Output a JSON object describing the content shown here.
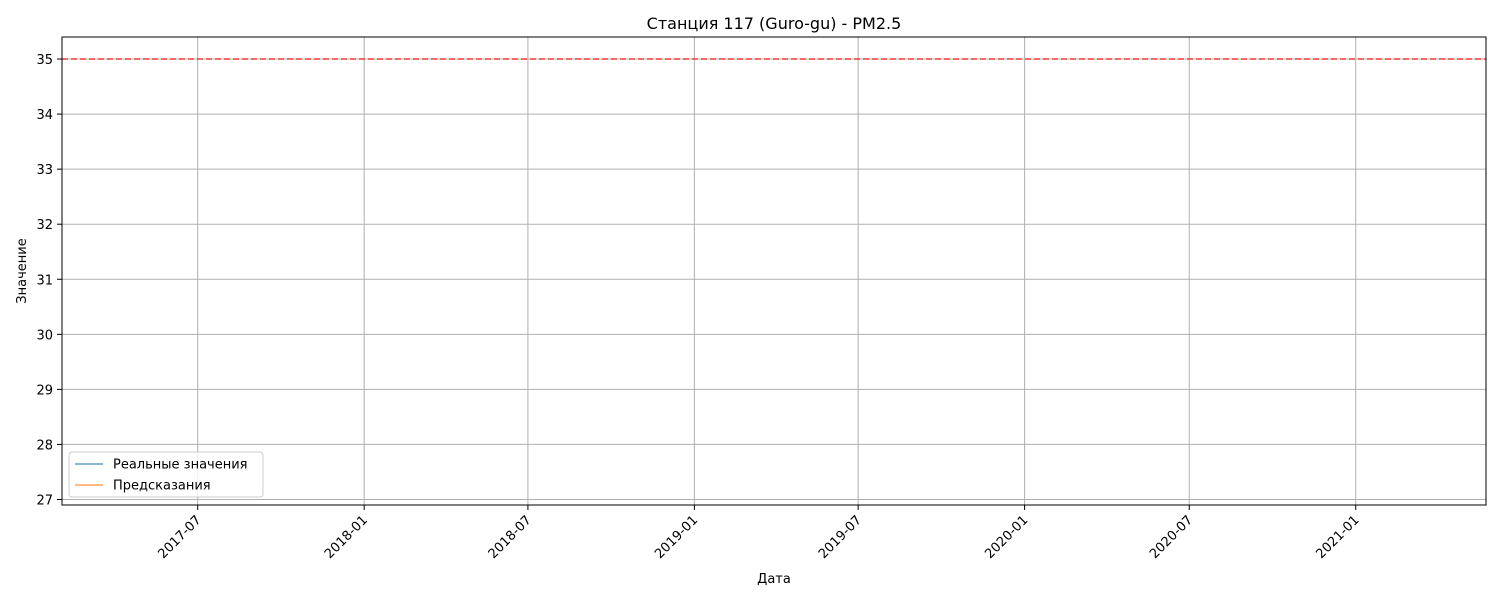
{
  "chart_data": {
    "type": "line",
    "title": "Станция 117 (Guro-gu) - PM2.5",
    "xlabel": "Дата",
    "ylabel": "Значение",
    "x_axis": {
      "range": [
        "2017-02-01",
        "2021-05-25"
      ],
      "tick_values": [
        "2017-07-01",
        "2018-01-01",
        "2018-07-01",
        "2019-01-01",
        "2019-07-01",
        "2020-01-01",
        "2020-07-01",
        "2021-01-01"
      ],
      "tick_labels": [
        "2017-07",
        "2018-01",
        "2018-07",
        "2019-01",
        "2019-07",
        "2020-01",
        "2020-07",
        "2021-01"
      ]
    },
    "y_axis": {
      "range": [
        26.9,
        35.4
      ],
      "tick_values": [
        27,
        28,
        29,
        30,
        31,
        32,
        33,
        34,
        35
      ],
      "tick_labels": [
        "27",
        "28",
        "29",
        "30",
        "31",
        "32",
        "33",
        "34",
        "35"
      ]
    },
    "grid": true,
    "legend_placement": "lower-left",
    "series": [
      {
        "name": "Реальные значения",
        "color": "#1f77b4",
        "x": [],
        "y": []
      },
      {
        "name": "Предсказания",
        "color": "#ff7f0e",
        "x": [],
        "y": []
      }
    ],
    "reference_lines": [
      {
        "y": 35,
        "color": "#ff0000",
        "style": "dashed"
      }
    ]
  }
}
